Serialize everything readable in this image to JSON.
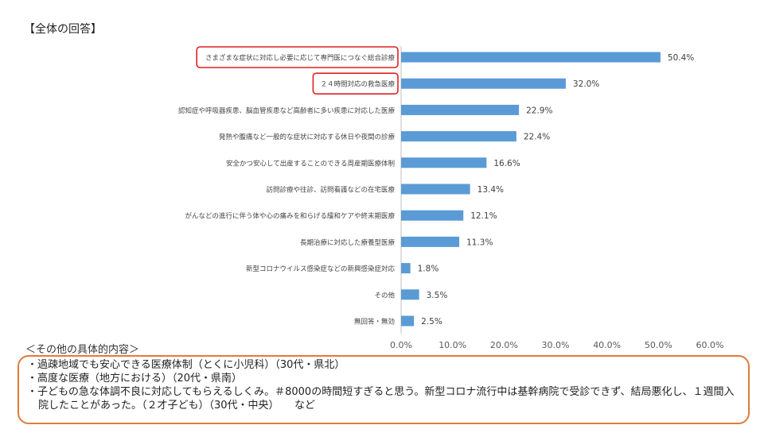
{
  "heading": "【全体の回答】",
  "chart_data": {
    "type": "bar",
    "orientation": "horizontal",
    "categories": [
      "さまざまな症状に対応し必要に応じて専門医につなぐ総合診療",
      "２４時間対応の救急医療",
      "認知症や呼吸器疾患、脳血管疾患など高齢者に多い疾患に対応した医療",
      "発熱や腹痛など一般的な症状に対応する休日や夜間の診療",
      "安全かつ安心して出産することのできる周産期医療体制",
      "訪問診療や往診、訪問看護などの在宅医療",
      "がんなどの進行に伴う体や心の痛みを和らげる緩和ケアや終末期医療",
      "長期治療に対応した療養型医療",
      "新型コロナウイルス感染症などの新興感染症対応",
      "その他",
      "無回答・無効"
    ],
    "values": [
      50.4,
      32.0,
      22.9,
      22.4,
      16.6,
      13.4,
      12.1,
      11.3,
      1.8,
      3.5,
      2.5
    ],
    "data_labels": [
      "50.4%",
      "32.0%",
      "22.9%",
      "22.4%",
      "16.6%",
      "13.4%",
      "12.1%",
      "11.3%",
      "1.8%",
      "3.5%",
      "2.5%"
    ],
    "xlim": [
      0,
      60
    ],
    "xticks": [
      "0.0%",
      "10.0%",
      "20.0%",
      "30.0%",
      "40.0%",
      "50.0%",
      "60.0%"
    ],
    "grid": false,
    "legend": "none",
    "highlighted_categories": [
      0,
      1
    ],
    "bar_color": "#5b9bd5",
    "highlight_color": "#e02020"
  },
  "other_details": {
    "title": "＜その他の具体的内容＞",
    "box_color": "#e07b39",
    "items": [
      "過疎地域でも安心できる医療体制（とくに小児科）（30代・県北）",
      "高度な医療（地方における）（20代・県南）",
      "子どもの急な体調不良に対応してもらえるしくみ。＃8000の時間短すぎると思う。新型コロナ流行中は基幹病院で受診できず、結局悪化し、１週間入院したことがあった。（２才子ども）（30代・中央）　　など"
    ]
  }
}
